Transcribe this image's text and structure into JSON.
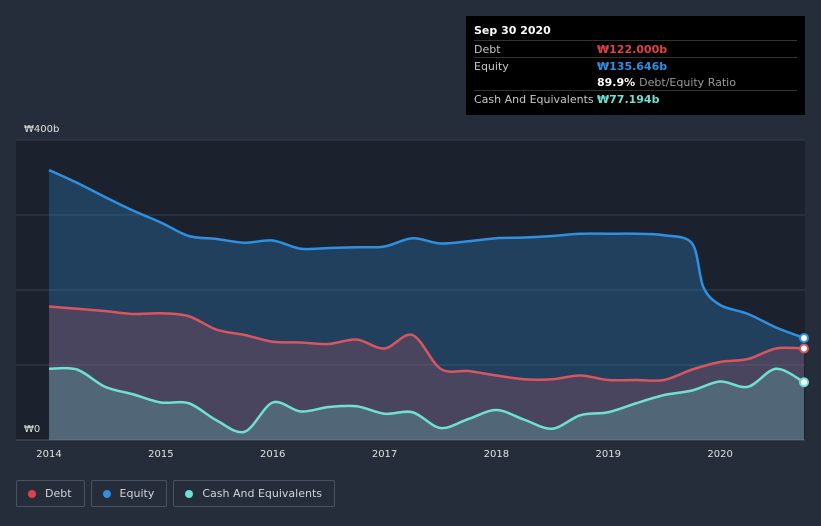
{
  "chart_data": {
    "type": "area",
    "currency_symbol": "₩",
    "x_ticks": [
      "2014",
      "2015",
      "2016",
      "2017",
      "2018",
      "2019",
      "2020"
    ],
    "x_range": [
      2014.0,
      2020.75
    ],
    "ylim": [
      0,
      400
    ],
    "y_tick_labels": {
      "top": "₩400b",
      "bottom": "₩0"
    },
    "series": [
      {
        "name": "Equity",
        "color": "#2f8fe0",
        "points": [
          [
            2014.0,
            360
          ],
          [
            2014.25,
            343
          ],
          [
            2014.5,
            324
          ],
          [
            2014.75,
            306
          ],
          [
            2015.0,
            290
          ],
          [
            2015.25,
            272
          ],
          [
            2015.5,
            268
          ],
          [
            2015.75,
            263
          ],
          [
            2016.0,
            266
          ],
          [
            2016.25,
            255
          ],
          [
            2016.5,
            256
          ],
          [
            2016.75,
            257
          ],
          [
            2017.0,
            258
          ],
          [
            2017.25,
            269
          ],
          [
            2017.5,
            262
          ],
          [
            2017.75,
            265
          ],
          [
            2018.0,
            269
          ],
          [
            2018.25,
            270
          ],
          [
            2018.5,
            272
          ],
          [
            2018.75,
            275
          ],
          [
            2019.0,
            275
          ],
          [
            2019.25,
            275
          ],
          [
            2019.5,
            273
          ],
          [
            2019.75,
            262
          ],
          [
            2019.85,
            204
          ],
          [
            2020.0,
            180
          ],
          [
            2020.25,
            168
          ],
          [
            2020.5,
            150
          ],
          [
            2020.75,
            136
          ]
        ]
      },
      {
        "name": "Debt",
        "color": "#d9555f",
        "points": [
          [
            2014.0,
            178
          ],
          [
            2014.25,
            175
          ],
          [
            2014.5,
            172
          ],
          [
            2014.75,
            168
          ],
          [
            2015.0,
            169
          ],
          [
            2015.25,
            165
          ],
          [
            2015.5,
            147
          ],
          [
            2015.75,
            140
          ],
          [
            2016.0,
            131
          ],
          [
            2016.25,
            130
          ],
          [
            2016.5,
            128
          ],
          [
            2016.75,
            134
          ],
          [
            2017.0,
            122
          ],
          [
            2017.25,
            140
          ],
          [
            2017.5,
            95
          ],
          [
            2017.75,
            92
          ],
          [
            2018.0,
            86
          ],
          [
            2018.25,
            81
          ],
          [
            2018.5,
            81
          ],
          [
            2018.75,
            86
          ],
          [
            2019.0,
            80
          ],
          [
            2019.25,
            80
          ],
          [
            2019.5,
            80
          ],
          [
            2019.75,
            94
          ],
          [
            2020.0,
            104
          ],
          [
            2020.25,
            108
          ],
          [
            2020.5,
            122
          ],
          [
            2020.75,
            122
          ]
        ]
      },
      {
        "name": "Cash And Equivalents",
        "color": "#6fe0d2",
        "points": [
          [
            2014.0,
            95
          ],
          [
            2014.25,
            94
          ],
          [
            2014.5,
            71
          ],
          [
            2014.75,
            61
          ],
          [
            2015.0,
            50
          ],
          [
            2015.25,
            49
          ],
          [
            2015.5,
            26
          ],
          [
            2015.75,
            11
          ],
          [
            2016.0,
            50
          ],
          [
            2016.25,
            38
          ],
          [
            2016.5,
            44
          ],
          [
            2016.75,
            45
          ],
          [
            2017.0,
            35
          ],
          [
            2017.25,
            37
          ],
          [
            2017.5,
            16
          ],
          [
            2017.75,
            28
          ],
          [
            2018.0,
            40
          ],
          [
            2018.25,
            27
          ],
          [
            2018.5,
            15
          ],
          [
            2018.75,
            33
          ],
          [
            2019.0,
            37
          ],
          [
            2019.25,
            49
          ],
          [
            2019.5,
            60
          ],
          [
            2019.75,
            66
          ],
          [
            2020.0,
            78
          ],
          [
            2020.25,
            71
          ],
          [
            2020.5,
            95
          ],
          [
            2020.75,
            77
          ]
        ]
      }
    ]
  },
  "tooltip": {
    "date": "Sep 30 2020",
    "rows": {
      "debt": {
        "label": "Debt",
        "value": "₩122.000b",
        "color": "#e0424b"
      },
      "equity": {
        "label": "Equity",
        "value": "₩135.646b",
        "color": "#2f8fe0"
      },
      "ratio": {
        "value": "89.9%",
        "label": "Debt/Equity Ratio"
      },
      "cash": {
        "label": "Cash And Equivalents",
        "value": "₩77.194b",
        "color": "#6fe0d2"
      }
    }
  },
  "legend": [
    {
      "label": "Debt",
      "color": "#e0424b"
    },
    {
      "label": "Equity",
      "color": "#2f8fe0"
    },
    {
      "label": "Cash And Equivalents",
      "color": "#6fe0d2"
    }
  ]
}
